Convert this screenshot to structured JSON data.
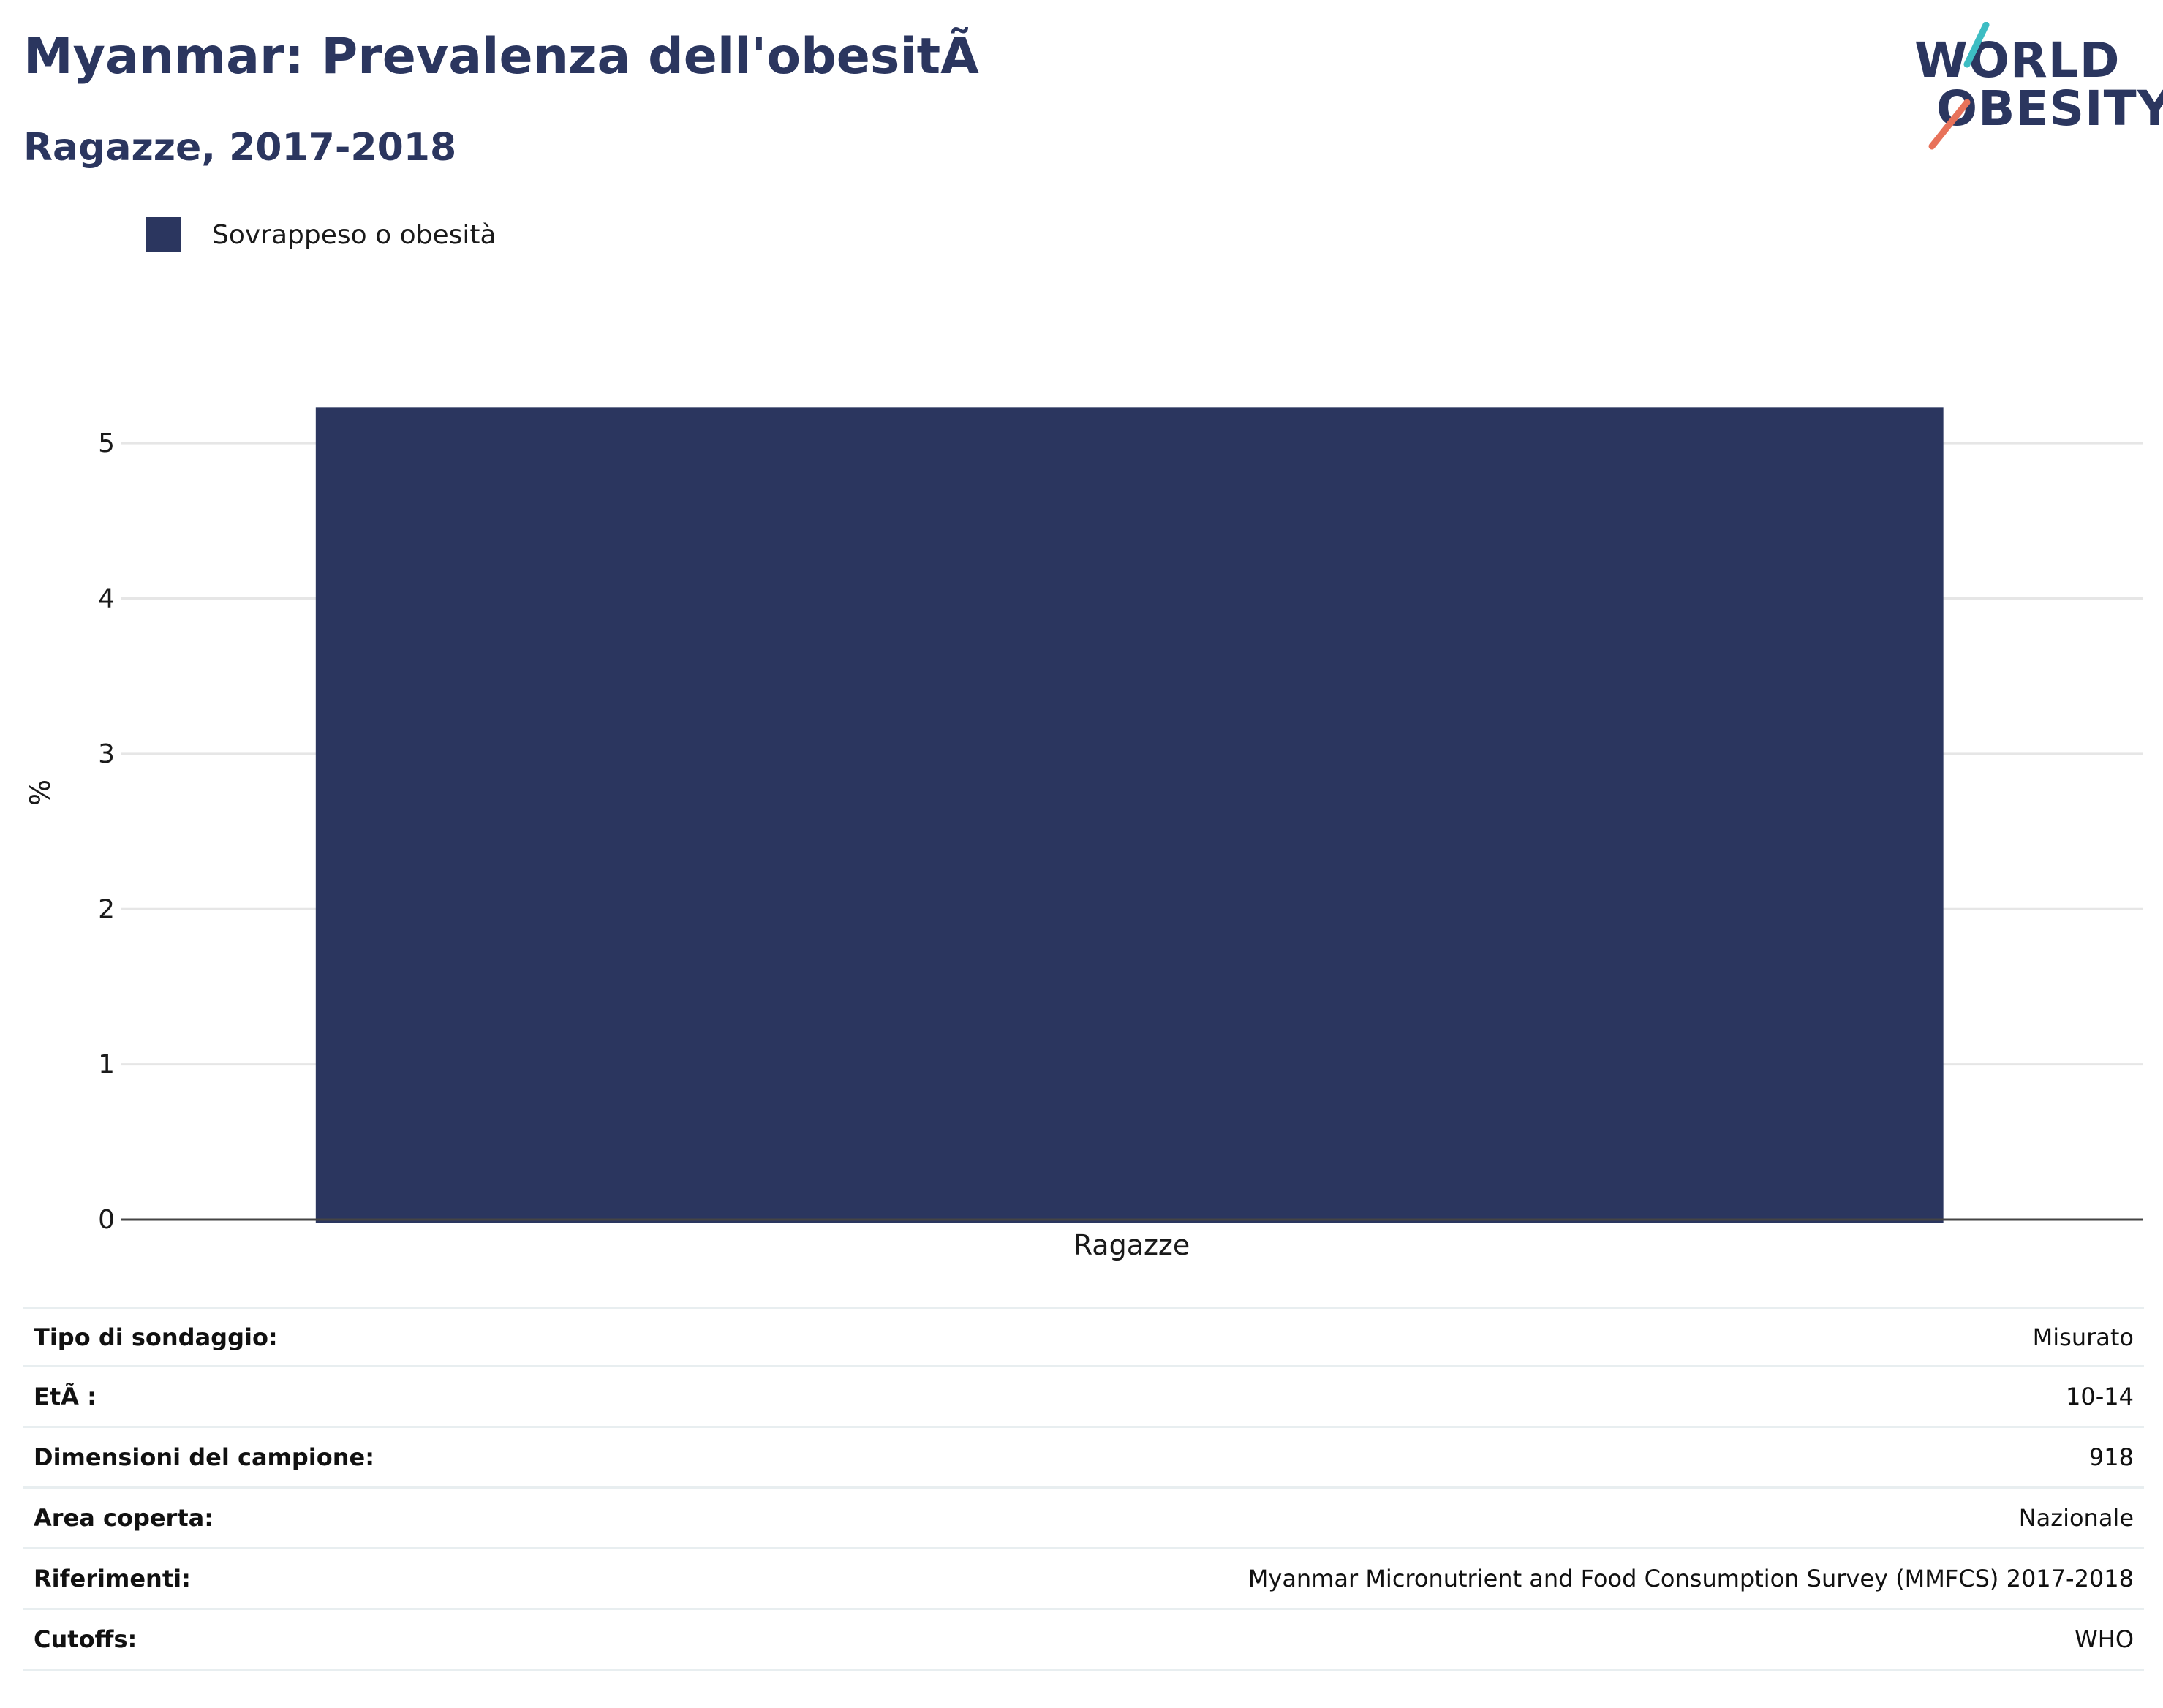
{
  "header": {
    "title": "Myanmar: Prevalenza dell'obesitÃ",
    "subtitle": "Ragazze, 2017-2018"
  },
  "logo": {
    "line1": "WORLD",
    "line2": "OBESITY",
    "accent_teal": "#3dbdc3",
    "accent_coral": "#e8725a"
  },
  "chart_data": {
    "type": "bar",
    "categories": [
      "Ragazze"
    ],
    "series": [
      {
        "name": "Sovrappeso o obesità",
        "values": [
          5.23
        ],
        "color": "#2b365f"
      }
    ],
    "title": "Myanmar: Prevalenza dell'obesitÃ",
    "subtitle": "Ragazze, 2017-2018",
    "xlabel": "",
    "ylabel": "%",
    "ylim": [
      0,
      5.5
    ],
    "yticks": [
      0,
      1,
      2,
      3,
      4,
      5
    ],
    "grid": true,
    "legend_position": "top-left"
  },
  "info": {
    "rows": [
      {
        "key": "Tipo di sondaggio:",
        "value": "Misurato"
      },
      {
        "key": "EtÃ :",
        "value": "10-14"
      },
      {
        "key": "Dimensioni del campione:",
        "value": "918"
      },
      {
        "key": "Area coperta:",
        "value": "Nazionale"
      },
      {
        "key": "Riferimenti:",
        "value": "Myanmar Micronutrient and Food Consumption Survey (MMFCS) 2017-2018"
      },
      {
        "key": "Cutoffs:",
        "value": "WHO"
      }
    ]
  }
}
